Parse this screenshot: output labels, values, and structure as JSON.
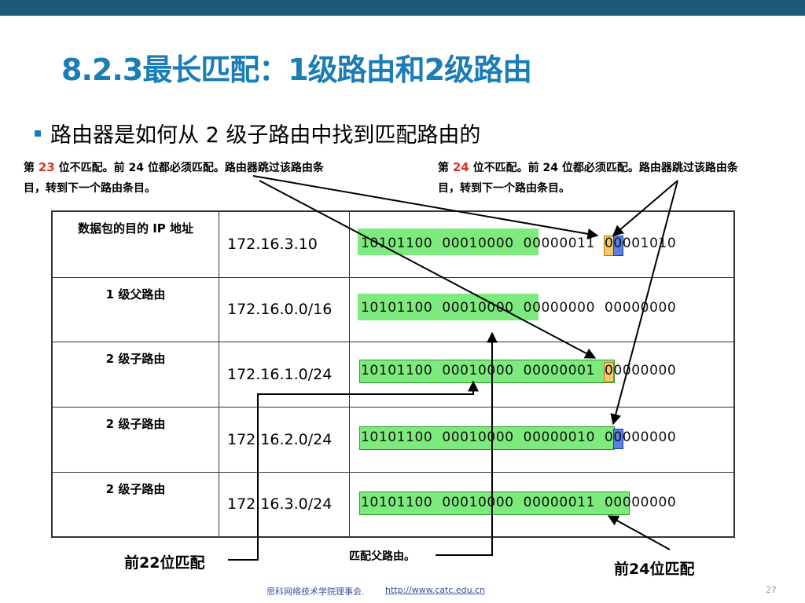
{
  "slide": {
    "title": "8.2.3最长匹配：1级路由和2级路由",
    "bullet": "路由器是如何从 2 级子路由中找到匹配路由的",
    "note_left": {
      "prefix": "第 ",
      "num": "23",
      "suffix": " 位不匹配。前 24 位都必须匹配。路由器跳过该路由条",
      "line2": "目，转到下一个路由条目。"
    },
    "note_right": {
      "prefix": "第 ",
      "num": "24",
      "suffix": " 位不匹配。前 24 位都必须匹配。路由器跳过该路由条",
      "line2": "目，转到下一个路由条目。"
    },
    "table": {
      "rows": [
        {
          "label": "数据包的目的 IP 地址",
          "address": "172.16.3.10",
          "bits": "10101100  00010000  00000011  00001010"
        },
        {
          "label": "1 级父路由",
          "address": "172.16.0.0/16",
          "bits": "10101100  00010000  00000000  00000000"
        },
        {
          "label": "2 级子路由",
          "address": "172.16.1.0/24",
          "bits": "10101100  00010000  00000001  00000000"
        },
        {
          "label": "2 级子路由",
          "address": "172.16.2.0/24",
          "bits": "10101100  00010000  00000010  00000000"
        },
        {
          "label": "2 级子路由",
          "address": "172.16.3.0/24",
          "bits": "10101100  00010000  00000011  00000000"
        }
      ]
    },
    "captions": {
      "left": "前22位匹配",
      "middle": "匹配父路由。",
      "right": "前24位匹配"
    },
    "footer": {
      "org": "思科网络技术学院理事会.",
      "url": "http://www.catc.edu.cn",
      "page": "27"
    },
    "colors": {
      "title": "#1a7db5",
      "topbar": "#1b5a7a",
      "match": "#7dea7d",
      "red": "#e03020"
    }
  }
}
